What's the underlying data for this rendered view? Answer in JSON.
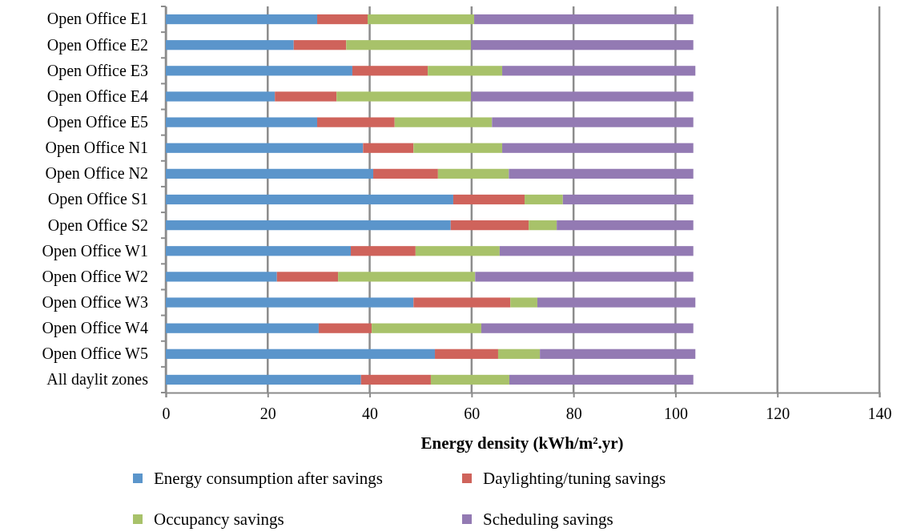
{
  "chart_data": {
    "type": "bar",
    "orientation": "horizontal",
    "stacked": true,
    "xlabel": "Energy density (kWh/m².yr)",
    "categories": [
      "Open Office E1",
      "Open Office E2",
      "Open Office E3",
      "Open Office E4",
      "Open Office E5",
      "Open Office N1",
      "Open Office N2",
      "Open Office S1",
      "Open Office S2",
      "Open Office W1",
      "Open Office W2",
      "Open Office W3",
      "Open Office W4",
      "Open Office W5",
      "All daylit zones"
    ],
    "series": [
      {
        "name": "Energy consumption after savings",
        "color": "#5b95cb",
        "values": [
          29.7,
          25.1,
          36.6,
          21.4,
          29.7,
          38.7,
          40.7,
          56.4,
          55.9,
          36.3,
          21.8,
          48.6,
          30.0,
          52.8,
          38.3
        ]
      },
      {
        "name": "Daylighting/tuning savings",
        "color": "#cf635b",
        "values": [
          9.9,
          10.3,
          14.8,
          12.1,
          15.2,
          9.9,
          12.7,
          14.0,
          15.3,
          12.7,
          12.0,
          19.0,
          10.4,
          12.4,
          13.7
        ]
      },
      {
        "name": "Occupancy savings",
        "color": "#a8c26a",
        "values": [
          20.9,
          24.5,
          14.6,
          26.4,
          19.1,
          17.4,
          13.9,
          7.5,
          5.5,
          16.5,
          26.9,
          5.3,
          21.5,
          8.2,
          15.4
        ]
      },
      {
        "name": "Scheduling savings",
        "color": "#937ab3",
        "values": [
          43.0,
          43.6,
          37.9,
          43.6,
          39.5,
          37.5,
          36.2,
          25.6,
          26.8,
          38.0,
          42.8,
          31.0,
          41.6,
          30.5,
          36.1
        ]
      }
    ],
    "xlim": [
      0,
      140
    ],
    "xticks": [
      0,
      20,
      40,
      60,
      80,
      100,
      120,
      140
    ],
    "grid": "x",
    "legend": "bottom"
  }
}
